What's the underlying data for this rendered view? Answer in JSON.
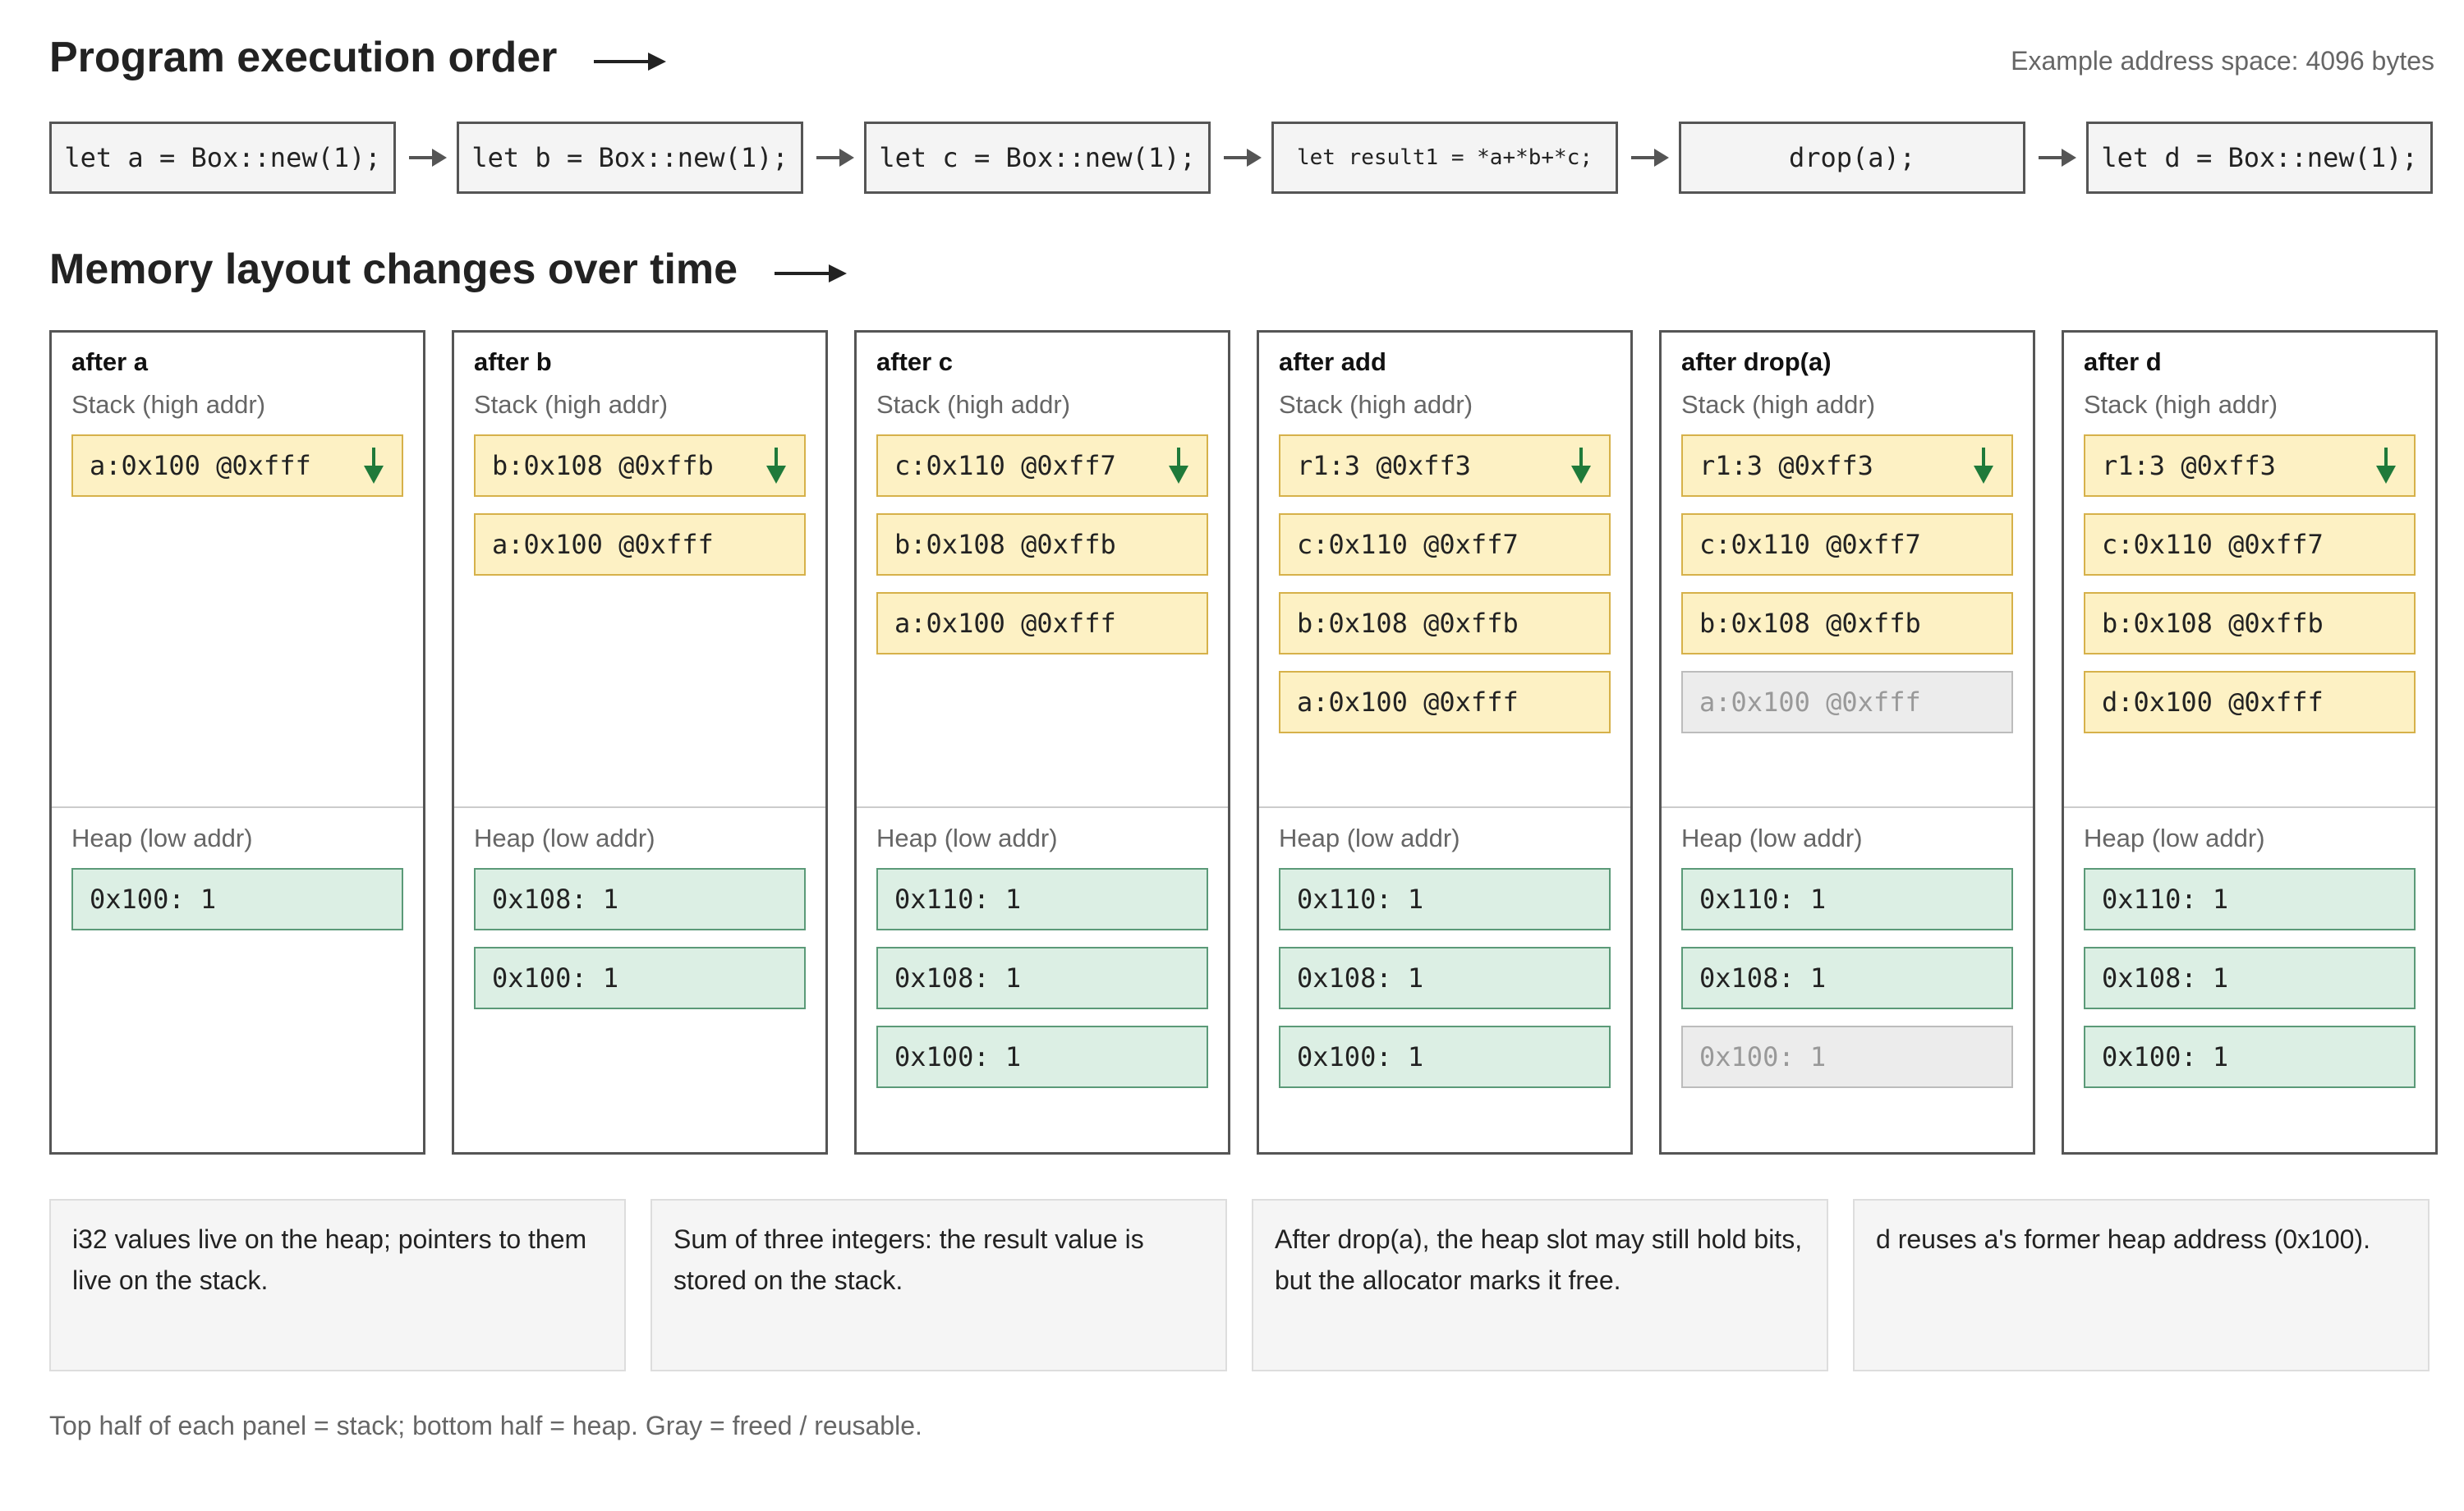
{
  "header": {
    "title": "Program execution order",
    "address_note": "Example address space: 4096 bytes"
  },
  "execution_steps": [
    "let a = Box::new(1);",
    "let b = Box::new(1);",
    "let c = Box::new(1);",
    "let result1 = *a+*b+*c;",
    "drop(a);",
    "let d = Box::new(1);"
  ],
  "memory": {
    "title": "Memory layout changes over time",
    "stack_label": "Stack (high addr)",
    "heap_label": "Heap (low addr)",
    "panels": [
      {
        "title": "after a",
        "stack": [
          {
            "text": "a:0x100 @0xfff",
            "freed": false
          }
        ],
        "heap": [
          {
            "text": "0x100: 1",
            "freed": false
          }
        ]
      },
      {
        "title": "after b",
        "stack": [
          {
            "text": "b:0x108 @0xffb",
            "freed": false
          },
          {
            "text": "a:0x100 @0xfff",
            "freed": false
          }
        ],
        "heap": [
          {
            "text": "0x108: 1",
            "freed": false
          },
          {
            "text": "0x100: 1",
            "freed": false
          }
        ]
      },
      {
        "title": "after c",
        "stack": [
          {
            "text": "c:0x110 @0xff7",
            "freed": false
          },
          {
            "text": "b:0x108 @0xffb",
            "freed": false
          },
          {
            "text": "a:0x100 @0xfff",
            "freed": false
          }
        ],
        "heap": [
          {
            "text": "0x110: 1",
            "freed": false
          },
          {
            "text": "0x108: 1",
            "freed": false
          },
          {
            "text": "0x100: 1",
            "freed": false
          }
        ]
      },
      {
        "title": "after add",
        "stack": [
          {
            "text": "r1:3 @0xff3",
            "freed": false
          },
          {
            "text": "c:0x110 @0xff7",
            "freed": false
          },
          {
            "text": "b:0x108 @0xffb",
            "freed": false
          },
          {
            "text": "a:0x100 @0xfff",
            "freed": false
          }
        ],
        "heap": [
          {
            "text": "0x110: 1",
            "freed": false
          },
          {
            "text": "0x108: 1",
            "freed": false
          },
          {
            "text": "0x100: 1",
            "freed": false
          }
        ]
      },
      {
        "title": "after drop(a)",
        "stack": [
          {
            "text": "r1:3 @0xff3",
            "freed": false
          },
          {
            "text": "c:0x110 @0xff7",
            "freed": false
          },
          {
            "text": "b:0x108 @0xffb",
            "freed": false
          },
          {
            "text": "a:0x100 @0xfff",
            "freed": true
          }
        ],
        "heap": [
          {
            "text": "0x110: 1",
            "freed": false
          },
          {
            "text": "0x108: 1",
            "freed": false
          },
          {
            "text": "0x100: 1",
            "freed": true
          }
        ]
      },
      {
        "title": "after d",
        "stack": [
          {
            "text": "r1:3 @0xff3",
            "freed": false
          },
          {
            "text": "c:0x110 @0xff7",
            "freed": false
          },
          {
            "text": "b:0x108 @0xffb",
            "freed": false
          },
          {
            "text": "d:0x100 @0xfff",
            "freed": false
          }
        ],
        "heap": [
          {
            "text": "0x110: 1",
            "freed": false
          },
          {
            "text": "0x108: 1",
            "freed": false
          },
          {
            "text": "0x100: 1",
            "freed": false
          }
        ]
      }
    ]
  },
  "notes": [
    "i32 values live on the heap; pointers to them live on the stack.",
    "Sum of three integers: the result value is stored on the stack.",
    "After drop(a), the heap slot may still hold bits, but the allocator marks it free.",
    "d reuses a's former heap address (0x100)."
  ],
  "footer": "Top half of each panel = stack; bottom half = heap. Gray = freed / reusable.",
  "colors": {
    "stack_fill": "#fdf1c4",
    "heap_fill": "#dcefe4",
    "freed_fill": "#ececec",
    "stack_pointer_arrow": "#1f7a3a"
  },
  "icons": {
    "stack_pointer": "stack-pointer-arrow-icon"
  }
}
